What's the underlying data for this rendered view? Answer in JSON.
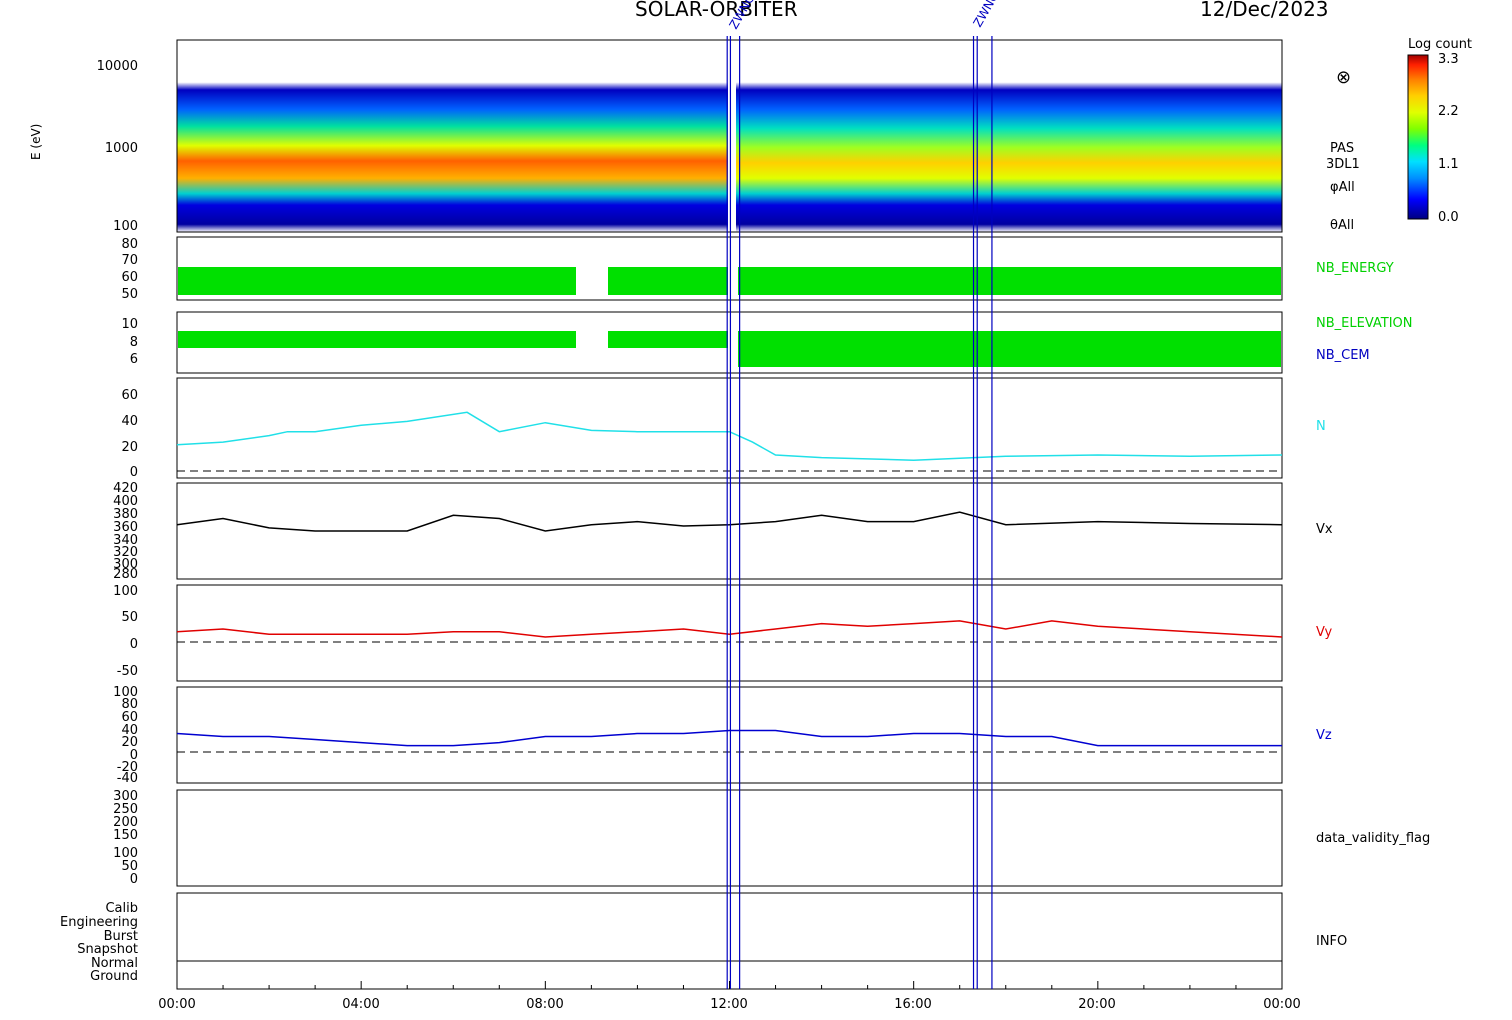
{
  "header": {
    "mission": "SOLAR-ORBITER",
    "date": "12/Dec/2023"
  },
  "colorbar": {
    "title": "Log count",
    "ticks": [
      "3.3",
      "2.2",
      "1.1",
      "0.0"
    ],
    "colors": [
      "#000080",
      "#0000ff",
      "#0090ff",
      "#00e0ff",
      "#00ff80",
      "#80ff00",
      "#e0ff00",
      "#ffd000",
      "#ff8000",
      "#ff2000",
      "#a00000"
    ]
  },
  "x_axis": {
    "ticks": [
      "00:00",
      "04:00",
      "08:00",
      "12:00",
      "16:00",
      "20:00",
      "00:00"
    ],
    "range_hours": [
      0,
      24
    ]
  },
  "markers": {
    "color": "#0000c0",
    "lines_hours": [
      11.95,
      12.02,
      12.22,
      17.3,
      17.38,
      17.7
    ],
    "labels": [
      "ZWNCRO",
      "ZWNCRO"
    ]
  },
  "panels": {
    "spectrogram": {
      "ylabel": "E (eV)",
      "yticks": [
        "10000",
        "1000",
        "100"
      ],
      "side_labels": [
        "PAS",
        "3DL1",
        "φAll",
        "θAll"
      ],
      "icon": "circled-times-icon"
    },
    "nb": {
      "yticks_energy": [
        "80",
        "70",
        "60",
        "50"
      ],
      "yticks_elev": [
        "10",
        "8",
        "6"
      ],
      "label_energy": "NB_ENERGY",
      "label_elevation": "NB_ELEVATION",
      "label_cem": "NB_CEM",
      "color_fill": "#00e000",
      "color_cem": "#0000c0"
    },
    "n": {
      "label": "N",
      "color": "#20e0e8",
      "yticks": [
        "60",
        "40",
        "20",
        "0"
      ]
    },
    "vx": {
      "label": "Vx",
      "color": "#000000",
      "yticks": [
        "420",
        "400",
        "380",
        "360",
        "340",
        "320",
        "300",
        "280"
      ]
    },
    "vy": {
      "label": "Vy",
      "color": "#e00000",
      "yticks": [
        "100",
        "50",
        "0",
        "-50"
      ]
    },
    "vz": {
      "label": "Vz",
      "color": "#0000d0",
      "yticks": [
        "100",
        "80",
        "60",
        "40",
        "20",
        "0",
        "-20",
        "-40"
      ]
    },
    "dvf": {
      "label": "data_validity_flag",
      "yticks": [
        "300",
        "250",
        "200",
        "150",
        "100",
        "50",
        "0"
      ]
    },
    "info": {
      "label": "INFO",
      "yticks": [
        "Calib",
        "Engineering",
        "Burst",
        "Snapshot",
        "Normal",
        "Ground"
      ]
    }
  },
  "chart_data": {
    "type": "line",
    "x_unit": "hours",
    "series": [
      {
        "name": "N",
        "x": [
          0,
          1,
          2,
          2.4,
          3,
          4,
          5,
          6.3,
          7,
          8,
          9,
          10,
          11,
          12,
          12.5,
          13,
          14,
          16,
          18,
          20,
          22,
          24
        ],
        "y": [
          20,
          22,
          27,
          30,
          30,
          35,
          38,
          45,
          30,
          37,
          31,
          30,
          30,
          30,
          22,
          12,
          10,
          8,
          11,
          12,
          11,
          12
        ]
      },
      {
        "name": "Vx",
        "x": [
          0,
          1,
          2,
          3,
          4,
          5,
          6,
          7,
          8,
          9,
          10,
          11,
          12,
          13,
          14,
          15,
          16,
          17,
          18,
          20,
          22,
          24
        ],
        "y": [
          360,
          370,
          355,
          350,
          350,
          350,
          375,
          370,
          350,
          360,
          365,
          358,
          360,
          365,
          375,
          365,
          365,
          380,
          360,
          365,
          362,
          360
        ]
      },
      {
        "name": "Vy",
        "x": [
          0,
          1,
          2,
          3,
          4,
          5,
          6,
          7,
          8,
          9,
          10,
          11,
          12,
          13,
          14,
          15,
          16,
          17,
          18,
          19,
          20,
          22,
          24
        ],
        "y": [
          20,
          25,
          15,
          15,
          15,
          15,
          20,
          20,
          10,
          15,
          20,
          25,
          15,
          25,
          35,
          30,
          35,
          40,
          25,
          40,
          30,
          20,
          10
        ]
      },
      {
        "name": "Vz",
        "x": [
          0,
          1,
          2,
          3,
          4,
          5,
          6,
          7,
          8,
          9,
          10,
          11,
          12,
          13,
          14,
          15,
          16,
          17,
          18,
          19,
          20,
          22,
          24
        ],
        "y": [
          30,
          25,
          25,
          20,
          15,
          10,
          10,
          15,
          25,
          25,
          30,
          30,
          35,
          35,
          25,
          25,
          30,
          30,
          25,
          25,
          10,
          10,
          10
        ]
      }
    ]
  }
}
